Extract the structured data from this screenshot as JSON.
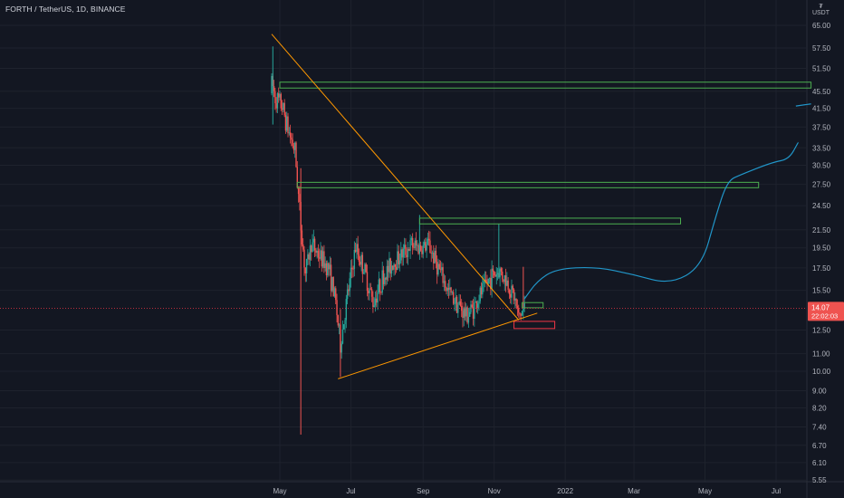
{
  "header": {
    "symbol": "FORTH / TetherUS",
    "interval": "1D",
    "exchange": "BINANCE"
  },
  "axis_unit": {
    "top": "₮",
    "currency": "USDT"
  },
  "price_badge": {
    "price": "14.07",
    "countdown": "22:02:03"
  },
  "colors": {
    "background": "#131722",
    "up": "#26a69a",
    "down": "#ef5350",
    "trendline": "#ff9800",
    "zone_green": "#4caf50",
    "zone_red": "#f23645",
    "projection": "#2196c9",
    "price_line": "#f23645"
  },
  "chart_data": {
    "type": "candlestick",
    "scale": "log",
    "y_ticks": [
      "65.00",
      "57.50",
      "51.50",
      "45.50",
      "41.50",
      "37.50",
      "33.50",
      "30.50",
      "27.50",
      "24.50",
      "21.50",
      "19.50",
      "17.50",
      "15.50",
      "12.50",
      "11.00",
      "10.00",
      "9.00",
      "8.20",
      "7.40",
      "6.70",
      "6.10",
      "5.55"
    ],
    "x_ticks": [
      "May",
      "Jul",
      "Sep",
      "Nov",
      "2022",
      "Mar",
      "May",
      "Jul"
    ],
    "last_price": 14.07,
    "candles_summary": {
      "listing_high": 58,
      "listing_low_wick": 7.1,
      "range_low": 9.7,
      "last_close": 14.07
    },
    "drawings": {
      "trendlines": [
        {
          "name": "descending-resistance",
          "from": {
            "date": "2021-04-24",
            "price": 62
          },
          "to": {
            "date": "2021-11-22",
            "price": 13.2
          }
        },
        {
          "name": "ascending-support",
          "from": {
            "date": "2021-06-20",
            "price": 9.6
          },
          "to": {
            "date": "2021-12-08",
            "price": 13.7
          }
        }
      ],
      "zones": [
        {
          "name": "upper-resistance-zone",
          "from": "2021-05-01",
          "to": "2022-07-31",
          "low": 46.3,
          "high": 47.8,
          "color": "green"
        },
        {
          "name": "resistance-zone-27",
          "from": "2021-05-16",
          "to": "2022-06-16",
          "low": 27.0,
          "high": 27.8,
          "color": "green"
        },
        {
          "name": "resistance-zone-22",
          "from": "2021-08-29",
          "to": "2022-04-10",
          "low": 22.2,
          "high": 22.9,
          "color": "green"
        },
        {
          "name": "entry-zone",
          "from": "2021-11-25",
          "to": "2021-12-13",
          "low": 14.1,
          "high": 14.5,
          "color": "green"
        },
        {
          "name": "stop-zone",
          "from": "2021-11-18",
          "to": "2021-12-23",
          "low": 12.6,
          "high": 13.1,
          "color": "red"
        }
      ],
      "projection_path": [
        {
          "date": "2021-11-27",
          "price": 14.8
        },
        {
          "date": "2021-12-08",
          "price": 16.3
        },
        {
          "date": "2021-12-24",
          "price": 17.4
        },
        {
          "date": "2022-01-27",
          "price": 17.6
        },
        {
          "date": "2022-02-28",
          "price": 16.9
        },
        {
          "date": "2022-04-01",
          "price": 16.0
        },
        {
          "date": "2022-04-28",
          "price": 17.6
        },
        {
          "date": "2022-05-10",
          "price": 23.0
        },
        {
          "date": "2022-05-20",
          "price": 28.0
        },
        {
          "date": "2022-06-01",
          "price": 29.0
        },
        {
          "date": "2022-06-28",
          "price": 31.0
        },
        {
          "date": "2022-07-12",
          "price": 31.5
        },
        {
          "date": "2022-07-20",
          "price": 34.5
        }
      ],
      "projection_top": [
        {
          "date": "2022-07-18",
          "price": 42.0
        },
        {
          "date": "2022-07-31",
          "price": 42.5
        }
      ]
    }
  }
}
